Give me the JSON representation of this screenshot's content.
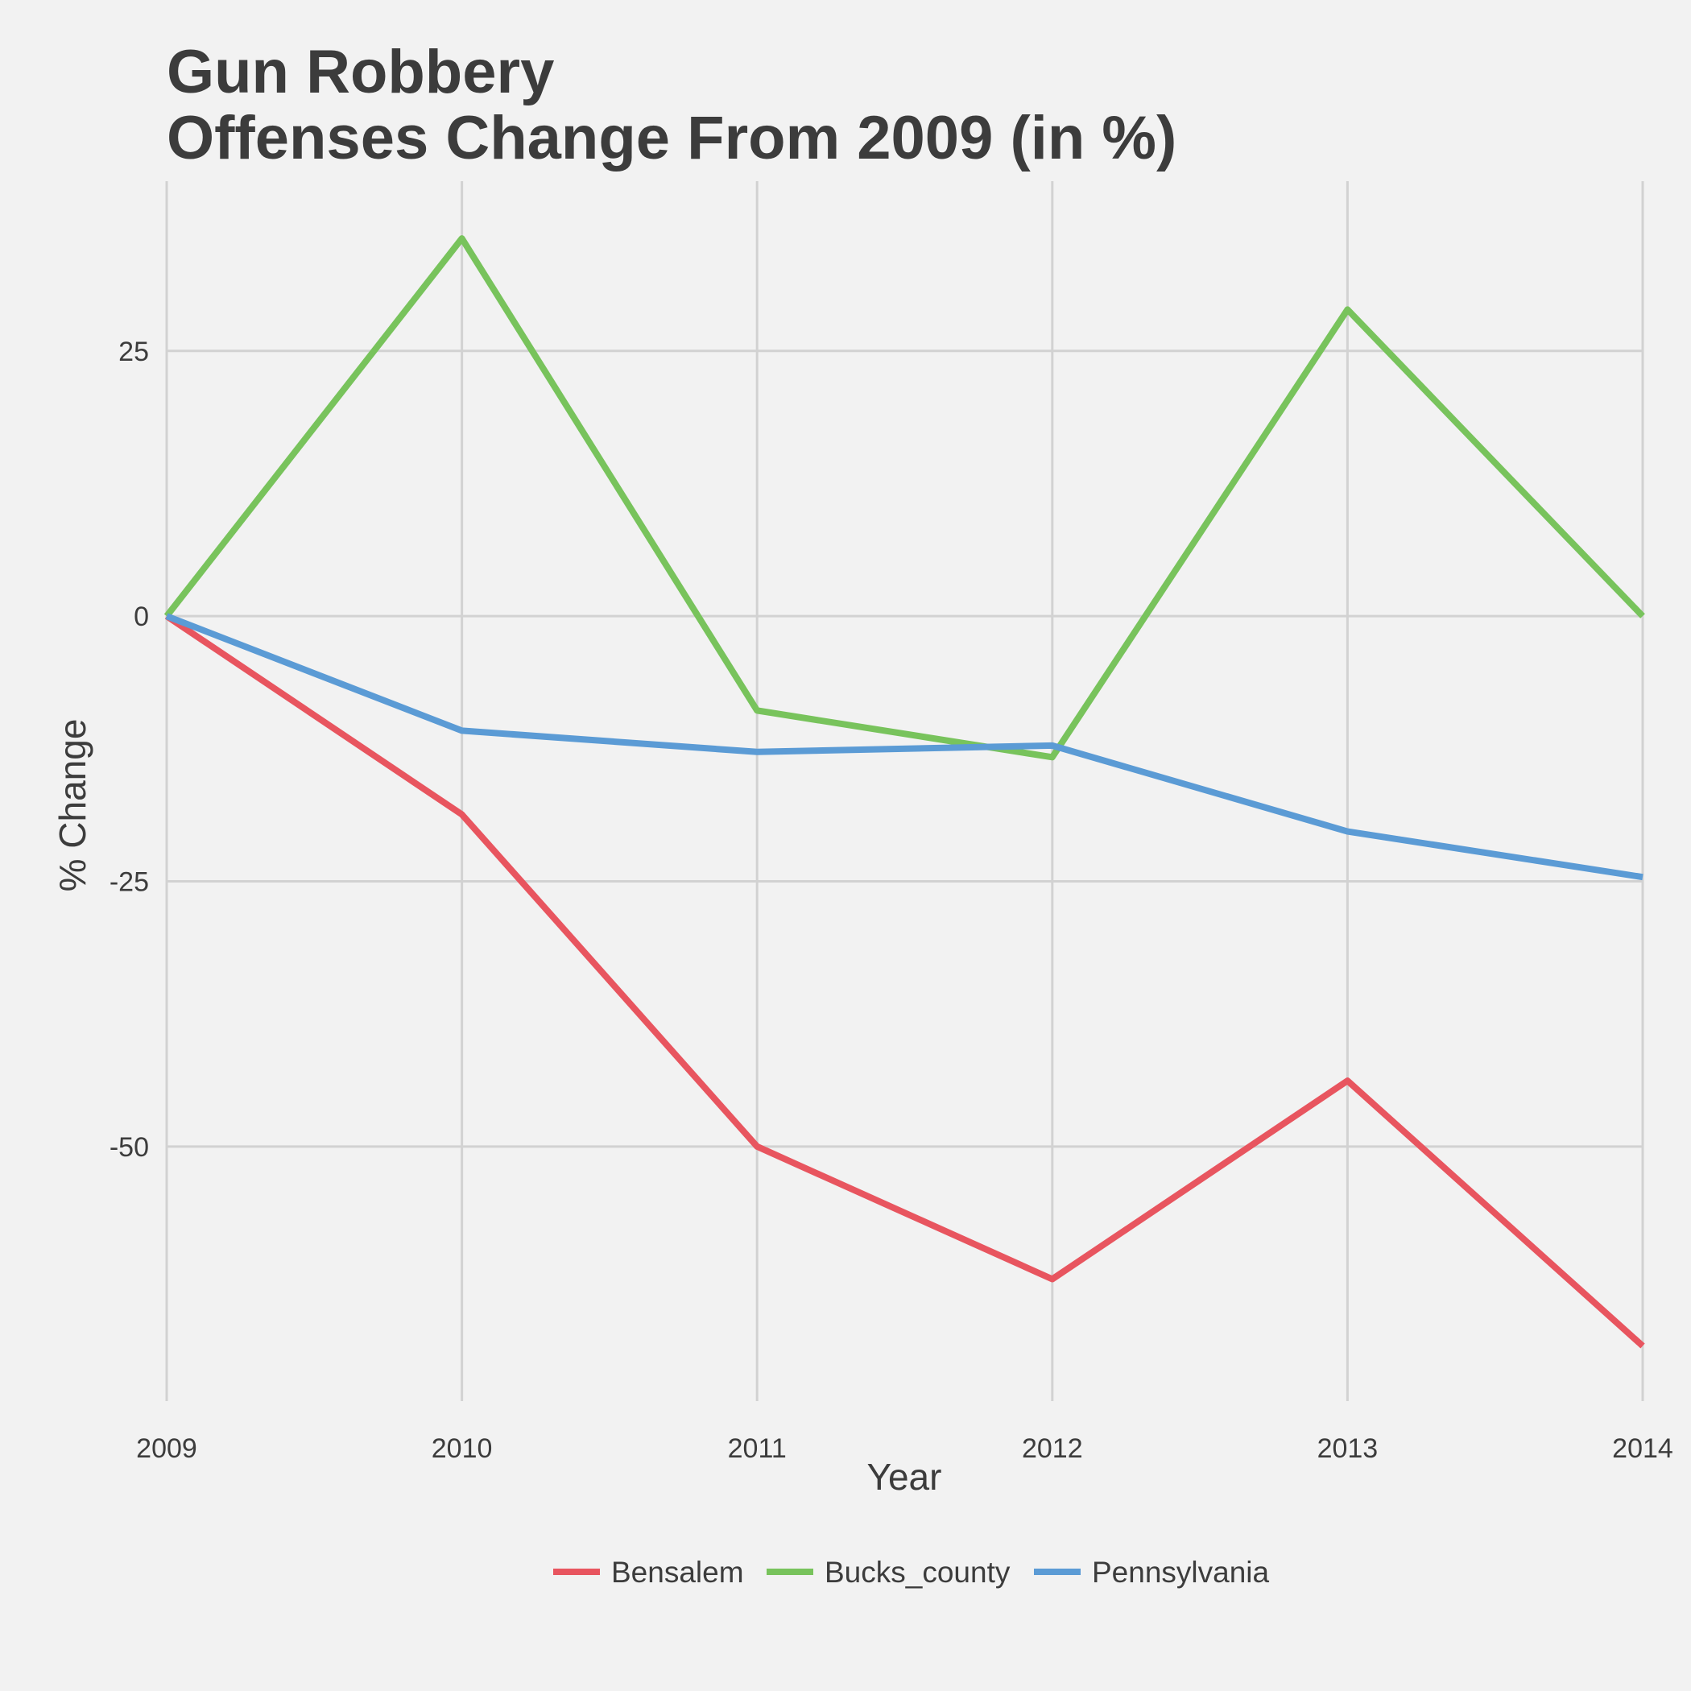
{
  "chart_data": {
    "type": "line",
    "title_line1": "Gun Robbery",
    "title_line2": "Offenses Change From 2009 (in %)",
    "xlabel": "Year",
    "ylabel": "% Change",
    "x": [
      2009,
      2010,
      2011,
      2012,
      2013,
      2014
    ],
    "xticks": [
      "2009",
      "2010",
      "2011",
      "2012",
      "2013",
      "2014"
    ],
    "yticks": [
      -50,
      -25,
      0,
      25
    ],
    "ytick_labels": [
      "-50",
      "-25",
      "0",
      "25"
    ],
    "xlim": [
      2009,
      2014
    ],
    "ylim": [
      -74,
      41
    ],
    "grid": true,
    "legend_position": "bottom",
    "series": [
      {
        "name": "Bensalem",
        "color": "#e8555f",
        "values": [
          0,
          -18.7,
          -50,
          -62.5,
          -43.8,
          -68.8
        ]
      },
      {
        "name": "Bucks_county",
        "color": "#78c35c",
        "values": [
          0,
          35.6,
          -8.9,
          -13.3,
          28.9,
          0
        ]
      },
      {
        "name": "Pennsylvania",
        "color": "#5b9bd5",
        "values": [
          0,
          -10.8,
          -12.8,
          -12.2,
          -20.3,
          -24.6
        ]
      }
    ]
  }
}
